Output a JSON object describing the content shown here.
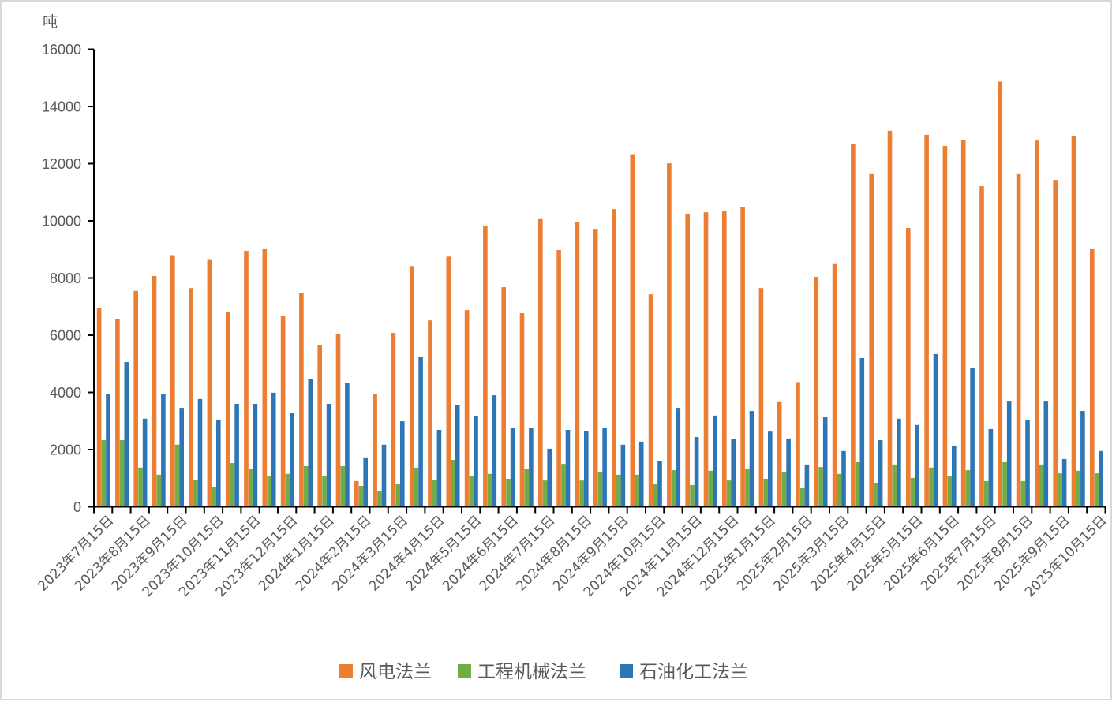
{
  "chart_data": {
    "type": "bar",
    "title": "",
    "unit_label": "吨",
    "xlabel": "",
    "ylabel": "吨",
    "ylim": [
      0,
      16000
    ],
    "yticks": [
      0,
      2000,
      4000,
      6000,
      8000,
      10000,
      12000,
      14000,
      16000
    ],
    "grid": false,
    "legend_position": "bottom",
    "label_every": 2,
    "categories": [
      "2023年7月15日",
      "",
      "2023年8月15日",
      "",
      "2023年9月15日",
      "",
      "2023年10月15日",
      "",
      "2023年11月15日",
      "",
      "2023年12月15日",
      "",
      "2024年1月15日",
      "",
      "2024年2月15日",
      "",
      "2024年3月15日",
      "",
      "2024年4月15日",
      "",
      "2024年5月15日",
      "",
      "2024年6月15日",
      "",
      "2024年7月15日",
      "",
      "2024年8月15日",
      "",
      "2024年9月15日",
      "",
      "2024年10月15日",
      "",
      "2024年11月15日",
      "",
      "2024年12月15日",
      "",
      "2025年1月15日",
      "",
      "2025年2月15日",
      "",
      "2025年3月15日",
      "",
      "2025年4月15日",
      "",
      "2025年5月15日",
      "",
      "2025年6月15日",
      "",
      "2025年7月15日",
      "",
      "2025年8月15日",
      "",
      "2025年9月15日",
      "",
      "2025年10月15日"
    ],
    "series": [
      {
        "name": "风电法兰",
        "color": "#ed7d31",
        "values": [
          6960,
          6580,
          7550,
          8070,
          8800,
          7650,
          8660,
          6800,
          8950,
          9010,
          6690,
          7490,
          5650,
          6040,
          900,
          3960,
          6080,
          8420,
          6520,
          8750,
          6880,
          9830,
          7680,
          6770,
          10060,
          8980,
          9970,
          9720,
          10410,
          12330,
          7430,
          12010,
          10250,
          10300,
          10360,
          10490,
          7650,
          3660,
          4360,
          8040,
          8490,
          12700,
          11660,
          13150,
          9750,
          13010,
          12620,
          12840,
          11210,
          14870,
          11660,
          12810,
          11430,
          12980,
          9010
        ]
      },
      {
        "name": "工程机械法兰",
        "color": "#70ad47",
        "values": [
          2330,
          2330,
          1370,
          1120,
          2170,
          950,
          700,
          1530,
          1310,
          1060,
          1150,
          1420,
          1090,
          1420,
          730,
          540,
          810,
          1370,
          950,
          1640,
          1090,
          1150,
          980,
          1310,
          920,
          1500,
          920,
          1200,
          1120,
          1120,
          810,
          1280,
          760,
          1260,
          920,
          1340,
          980,
          1230,
          650,
          1390,
          1150,
          1560,
          840,
          1480,
          1010,
          1370,
          1090,
          1280,
          900,
          1560,
          900,
          1480,
          1170,
          1260,
          1170
        ]
      },
      {
        "name": "石油化工法兰",
        "color": "#2e75b6",
        "values": [
          3930,
          5060,
          3080,
          3930,
          3460,
          3770,
          3050,
          3600,
          3600,
          3990,
          3270,
          4460,
          3600,
          4320,
          1700,
          2170,
          2990,
          5230,
          2690,
          3570,
          3160,
          3900,
          2750,
          2770,
          2030,
          2690,
          2660,
          2750,
          2170,
          2280,
          1610,
          3460,
          2440,
          3190,
          2360,
          3350,
          2630,
          2390,
          1480,
          3130,
          1950,
          5200,
          2330,
          3080,
          2860,
          5340,
          2140,
          4870,
          2720,
          3680,
          3020,
          3680,
          1670,
          3350,
          1950
        ]
      }
    ]
  }
}
